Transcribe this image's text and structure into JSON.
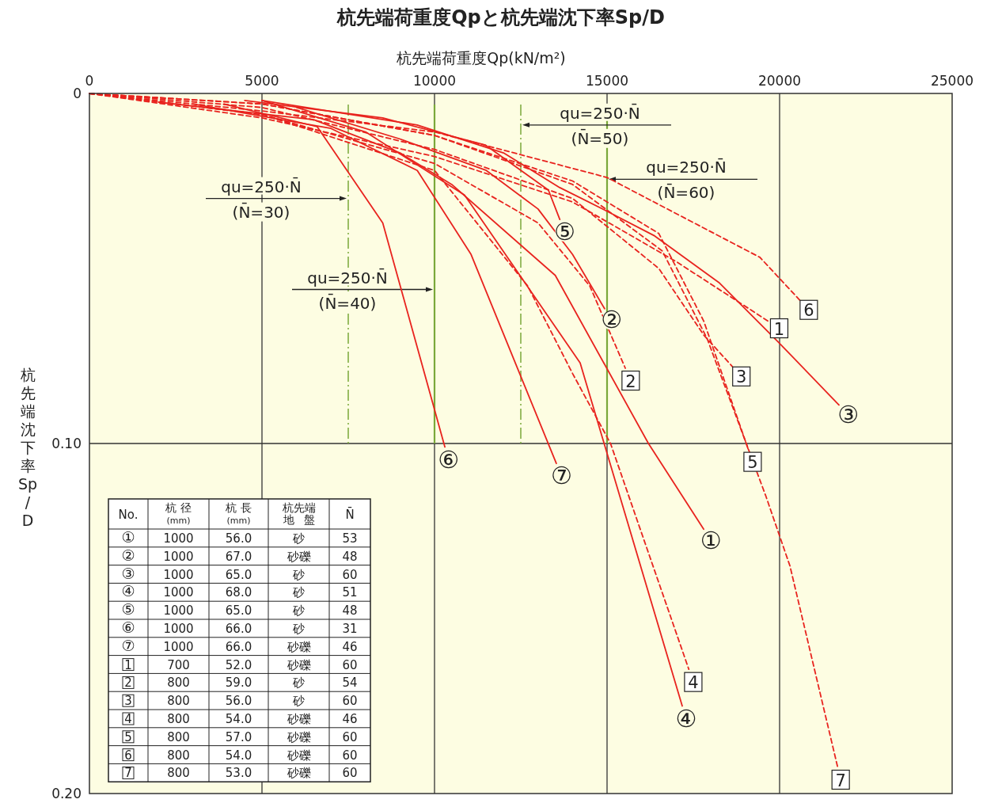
{
  "chart_data": {
    "type": "line",
    "title": "杭先端荷重度Qpと杭先端沈下率Sp/D",
    "xlabel": "杭先端荷重度Qp(kN/m²)",
    "ylabel": "杭先端沈下率Sp/D",
    "xlim": [
      0,
      25000
    ],
    "xticks": [
      0,
      5000,
      10000,
      15000,
      20000,
      25000
    ],
    "ylim": [
      0.2,
      0
    ],
    "yticks": [
      0,
      {
        "value": 0.1,
        "label": "0.10"
      },
      {
        "value": 0.2,
        "label": "0.20"
      }
    ],
    "grid": true,
    "series": [
      {
        "name": "①",
        "color": "#e8231e",
        "line_style": "solid",
        "x": [
          2000,
          6500,
          9000,
          10500,
          13500,
          16200,
          17800
        ],
        "values": [
          0.0025,
          0.0075,
          0.017,
          0.026,
          0.052,
          0.1,
          0.1245
        ]
      },
      {
        "name": "②",
        "color": "#e8231e",
        "line_style": "solid",
        "x": [
          6000,
          9000,
          11500,
          13000,
          14000,
          14930
        ],
        "values": [
          0.004,
          0.013,
          0.022,
          0.033,
          0.046,
          0.0615
        ]
      },
      {
        "name": "③",
        "color": "#e8231e",
        "line_style": "solid",
        "x": [
          5000,
          9500,
          12000,
          13630,
          14910,
          16380,
          18240,
          19960,
          21720
        ],
        "values": [
          0.002,
          0.009,
          0.017,
          0.0269,
          0.0332,
          0.0407,
          0.054,
          0.071,
          0.089
        ]
      },
      {
        "name": "④",
        "color": "#e8231e",
        "line_style": "solid",
        "x": [
          5000,
          8000,
          10870,
          14220,
          17180
        ],
        "values": [
          0.002,
          0.011,
          0.029,
          0.077,
          0.175
        ]
      },
      {
        "name": "⑤",
        "color": "#e8231e",
        "line_style": "solid",
        "x": [
          4500,
          8500,
          11470,
          13300,
          13630
        ],
        "values": [
          0.002,
          0.007,
          0.0147,
          0.0276,
          0.036
        ]
      },
      {
        "name": "⑥",
        "color": "#e8231e",
        "line_style": "solid",
        "x": [
          3900,
          6600,
          8500,
          10300
        ],
        "values": [
          0.003,
          0.0095,
          0.037,
          0.101
        ]
      },
      {
        "name": "⑦",
        "color": "#e8231e",
        "line_style": "solid",
        "x": [
          3000,
          7000,
          9500,
          11060,
          13530
        ],
        "values": [
          0.003,
          0.01,
          0.022,
          0.046,
          0.1057
        ]
      },
      {
        "name": "1",
        "color": "#e8231e",
        "line_style": "dashed",
        "x": [
          0,
          5000,
          10000,
          14000,
          17000,
          19660
        ],
        "values": [
          0,
          0.007,
          0.018,
          0.031,
          0.048,
          0.065
        ]
      },
      {
        "name": "2",
        "color": "#e8231e",
        "line_style": "dashed",
        "x": [
          0,
          5000,
          10000,
          13000,
          14500,
          15530
        ],
        "values": [
          0,
          0.006,
          0.02,
          0.037,
          0.055,
          0.0785
        ]
      },
      {
        "name": "3",
        "color": "#e8231e",
        "line_style": "dashed",
        "x": [
          0,
          5000,
          10000,
          14000,
          16500,
          17800,
          18630
        ],
        "values": [
          0,
          0.004,
          0.016,
          0.03,
          0.05,
          0.069,
          0.078
        ]
      },
      {
        "name": "4",
        "color": "#e8231e",
        "line_style": "dashed",
        "x": [
          0,
          5000,
          10000,
          12700,
          14000,
          15100,
          17370
        ],
        "values": [
          0,
          0.006,
          0.022,
          0.055,
          0.08,
          0.1,
          0.1645
        ]
      },
      {
        "name": "5",
        "color": "#e8231e",
        "line_style": "dashed",
        "x": [
          0,
          5000,
          10000,
          14000,
          16500,
          17800,
          19090
        ],
        "values": [
          0,
          0.003,
          0.012,
          0.025,
          0.04,
          0.065,
          0.1016
        ]
      },
      {
        "name": "6",
        "color": "#e8231e",
        "line_style": "dashed",
        "x": [
          0,
          5000,
          10000,
          15000,
          19430,
          20580
        ],
        "values": [
          0,
          0.005,
          0.011,
          0.024,
          0.0468,
          0.059
        ]
      },
      {
        "name": "7",
        "color": "#e8231e",
        "line_style": "dashed",
        "x": [
          0,
          5000,
          10000,
          14000,
          16600,
          17900,
          19600,
          20300,
          21680
        ],
        "values": [
          0,
          0.003,
          0.012,
          0.026,
          0.045,
          0.07,
          0.115,
          0.135,
          0.1923
        ]
      }
    ],
    "ref_lines": [
      {
        "axis": "x",
        "value": 7500,
        "color": "#7aa83a",
        "line_style": "dashed"
      },
      {
        "axis": "x",
        "value": 10000,
        "color": "#7aa83a",
        "line_style": "solid"
      },
      {
        "axis": "x",
        "value": 12500,
        "color": "#7aa83a",
        "line_style": "dashed"
      },
      {
        "axis": "x",
        "value": 15000,
        "color": "#7aa83a",
        "line_style": "solid"
      }
    ],
    "annotations": [
      {
        "text": "qu=250·N̄\n(N̄=30)",
        "x": 7500,
        "y": 0.03
      },
      {
        "text": "qu=250·N̄\n(N̄=40)",
        "x": 10000,
        "y": 0.056
      },
      {
        "text": "qu=250·N̄\n(N̄=50)",
        "x": 12500,
        "y": 0.009
      },
      {
        "text": "qu=250·N̄\n(N̄=60)",
        "x": 15000,
        "y": 0.0245
      },
      "No.\t杭 径(mm)\t杭 長(mm)\t杭先端地盤\tN̄",
      "①\t1000\t56.0\t砂\t53",
      "②\t1000\t67.0\t砂礫\t48",
      "③\t1000\t65.0\t砂\t60",
      "④\t1000\t68.0\t砂\t51",
      "⑤\t1000\t65.0\t砂\t48",
      "⑥\t1000\t66.0\t砂\t31",
      "⑦\t1000\t66.0\t砂礫\t46",
      "1\t700\t52.0\t砂礫\t60",
      "2\t800\t59.0\t砂\t54",
      "3\t800\t56.0\t砂\t60",
      "4\t800\t54.0\t砂礫\t46",
      "5\t800\t57.0\t砂礫\t60",
      "6\t800\t54.0\t砂礫\t60",
      "7\t800\t53.0\t砂礫\t60"
    ]
  }
}
